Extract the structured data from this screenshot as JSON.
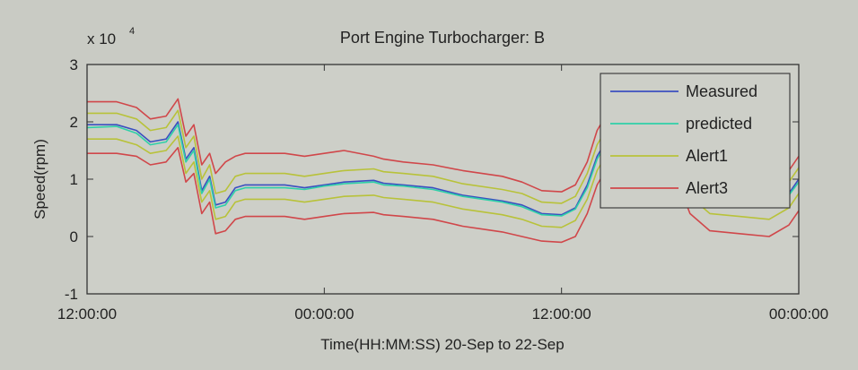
{
  "chart_data": {
    "type": "line",
    "title": "Port Engine Turbocharger: B",
    "xlabel": "Time(HH:MM:SS) 20-Sep to 22-Sep",
    "ylabel": "Speed(rpm)",
    "y_multiplier": "x 10",
    "y_multiplier_exp": "4",
    "xlim": [
      0,
      36
    ],
    "ylim": [
      -1,
      3
    ],
    "x_ticks": [
      0,
      12,
      24,
      36
    ],
    "x_tick_labels": [
      "12:00:00",
      "00:00:00",
      "12:00:00",
      "00:00:00"
    ],
    "y_ticks": [
      -1,
      0,
      1,
      2,
      3
    ],
    "y_tick_labels": [
      "-1",
      "0",
      "1",
      "2",
      "3"
    ],
    "grid": false,
    "legend_position": "top-right",
    "series": [
      {
        "name": "Measured",
        "color": "#3b4fc0",
        "points": [
          [
            0,
            1.95
          ],
          [
            1.5,
            1.95
          ],
          [
            2.5,
            1.85
          ],
          [
            3.2,
            1.65
          ],
          [
            4.0,
            1.7
          ],
          [
            4.6,
            2.0
          ],
          [
            5.0,
            1.35
          ],
          [
            5.4,
            1.55
          ],
          [
            5.8,
            0.8
          ],
          [
            6.2,
            1.05
          ],
          [
            6.5,
            0.55
          ],
          [
            7.0,
            0.6
          ],
          [
            7.5,
            0.85
          ],
          [
            8,
            0.9
          ],
          [
            10,
            0.9
          ],
          [
            11,
            0.85
          ],
          [
            12,
            0.9
          ],
          [
            13,
            0.95
          ],
          [
            14.5,
            0.98
          ],
          [
            15,
            0.93
          ],
          [
            16,
            0.9
          ],
          [
            17.5,
            0.85
          ],
          [
            19,
            0.72
          ],
          [
            21,
            0.62
          ],
          [
            22,
            0.55
          ],
          [
            23,
            0.4
          ],
          [
            24,
            0.38
          ],
          [
            24.7,
            0.5
          ],
          [
            25.3,
            0.9
          ],
          [
            25.8,
            1.4
          ],
          [
            26.4,
            1.75
          ],
          [
            27,
            1.85
          ],
          [
            28,
            1.85
          ],
          [
            29,
            1.85
          ],
          [
            29.7,
            1.8
          ],
          [
            30,
            1.35
          ],
          [
            30.5,
            0.95
          ],
          [
            31.5,
            0.65
          ],
          [
            33,
            0.6
          ],
          [
            34.5,
            0.55
          ],
          [
            35.5,
            0.75
          ],
          [
            36,
            1.0
          ]
        ]
      },
      {
        "name": "predicted",
        "color": "#2fd0a8",
        "points": [
          [
            0,
            1.9
          ],
          [
            1.5,
            1.92
          ],
          [
            2.5,
            1.8
          ],
          [
            3.2,
            1.6
          ],
          [
            4.0,
            1.65
          ],
          [
            4.6,
            1.95
          ],
          [
            5.0,
            1.3
          ],
          [
            5.4,
            1.5
          ],
          [
            5.8,
            0.75
          ],
          [
            6.2,
            1.0
          ],
          [
            6.5,
            0.5
          ],
          [
            7.0,
            0.55
          ],
          [
            7.5,
            0.8
          ],
          [
            8,
            0.85
          ],
          [
            10,
            0.85
          ],
          [
            11,
            0.82
          ],
          [
            12,
            0.88
          ],
          [
            13,
            0.92
          ],
          [
            14.5,
            0.95
          ],
          [
            15,
            0.9
          ],
          [
            16,
            0.88
          ],
          [
            17.5,
            0.82
          ],
          [
            19,
            0.7
          ],
          [
            21,
            0.6
          ],
          [
            22,
            0.52
          ],
          [
            23,
            0.38
          ],
          [
            24,
            0.36
          ],
          [
            24.7,
            0.48
          ],
          [
            25.3,
            0.85
          ],
          [
            25.8,
            1.35
          ],
          [
            26.4,
            1.7
          ],
          [
            27,
            1.8
          ],
          [
            28,
            1.82
          ],
          [
            29,
            1.82
          ],
          [
            29.7,
            1.76
          ],
          [
            30,
            1.3
          ],
          [
            30.5,
            0.9
          ],
          [
            31.5,
            0.62
          ],
          [
            33,
            0.58
          ],
          [
            34.5,
            0.52
          ],
          [
            35.5,
            0.72
          ],
          [
            36,
            0.95
          ]
        ]
      },
      {
        "name": "Alert1",
        "color": "#b8c23a",
        "points": [
          [
            0,
            2.15
          ],
          [
            1.5,
            2.15
          ],
          [
            2.5,
            2.05
          ],
          [
            3.2,
            1.85
          ],
          [
            4.0,
            1.9
          ],
          [
            4.6,
            2.2
          ],
          [
            5.0,
            1.55
          ],
          [
            5.4,
            1.75
          ],
          [
            5.8,
            1.0
          ],
          [
            6.2,
            1.25
          ],
          [
            6.5,
            0.75
          ],
          [
            7.0,
            0.8
          ],
          [
            7.5,
            1.05
          ],
          [
            8,
            1.1
          ],
          [
            10,
            1.1
          ],
          [
            11,
            1.05
          ],
          [
            12,
            1.1
          ],
          [
            13,
            1.15
          ],
          [
            14.5,
            1.18
          ],
          [
            15,
            1.13
          ],
          [
            16,
            1.1
          ],
          [
            17.5,
            1.05
          ],
          [
            19,
            0.92
          ],
          [
            21,
            0.82
          ],
          [
            22,
            0.75
          ],
          [
            23,
            0.6
          ],
          [
            24,
            0.58
          ],
          [
            24.7,
            0.7
          ],
          [
            25.3,
            1.1
          ],
          [
            25.8,
            1.6
          ],
          [
            26.4,
            1.95
          ],
          [
            27,
            2.05
          ],
          [
            28,
            2.05
          ],
          [
            29,
            2.05
          ],
          [
            29.7,
            2.0
          ],
          [
            30,
            1.55
          ],
          [
            30.5,
            1.15
          ],
          [
            31.5,
            0.85
          ],
          [
            33,
            0.8
          ],
          [
            34.5,
            0.75
          ],
          [
            35.5,
            0.95
          ],
          [
            36,
            1.2
          ]
        ]
      },
      {
        "name": "Alert3",
        "color": "#d0474a",
        "points": [
          [
            0,
            2.35
          ],
          [
            1.5,
            2.35
          ],
          [
            2.5,
            2.25
          ],
          [
            3.2,
            2.05
          ],
          [
            4.0,
            2.1
          ],
          [
            4.6,
            2.4
          ],
          [
            5.0,
            1.75
          ],
          [
            5.4,
            1.95
          ],
          [
            5.8,
            1.25
          ],
          [
            6.2,
            1.45
          ],
          [
            6.5,
            1.1
          ],
          [
            7.0,
            1.3
          ],
          [
            7.5,
            1.4
          ],
          [
            8,
            1.45
          ],
          [
            10,
            1.45
          ],
          [
            11,
            1.4
          ],
          [
            12,
            1.45
          ],
          [
            13,
            1.5
          ],
          [
            14.5,
            1.4
          ],
          [
            15,
            1.35
          ],
          [
            16,
            1.3
          ],
          [
            17.5,
            1.25
          ],
          [
            19,
            1.15
          ],
          [
            21,
            1.05
          ],
          [
            22,
            0.95
          ],
          [
            23,
            0.8
          ],
          [
            24,
            0.78
          ],
          [
            24.7,
            0.9
          ],
          [
            25.3,
            1.3
          ],
          [
            25.8,
            1.85
          ],
          [
            26.4,
            2.2
          ],
          [
            27,
            2.3
          ],
          [
            28,
            2.3
          ],
          [
            29,
            2.3
          ],
          [
            29.7,
            2.25
          ],
          [
            30,
            1.8
          ],
          [
            30.5,
            1.35
          ],
          [
            31.5,
            1.05
          ],
          [
            33,
            1.0
          ],
          [
            34.5,
            0.95
          ],
          [
            35.5,
            1.15
          ],
          [
            36,
            1.4
          ]
        ]
      },
      {
        "name": "",
        "color": "#d0474a",
        "points": [
          [
            0,
            1.45
          ],
          [
            1.5,
            1.45
          ],
          [
            2.5,
            1.4
          ],
          [
            3.2,
            1.25
          ],
          [
            4.0,
            1.3
          ],
          [
            4.6,
            1.55
          ],
          [
            5.0,
            0.95
          ],
          [
            5.4,
            1.1
          ],
          [
            5.8,
            0.4
          ],
          [
            6.2,
            0.6
          ],
          [
            6.5,
            0.05
          ],
          [
            7.0,
            0.1
          ],
          [
            7.5,
            0.3
          ],
          [
            8,
            0.35
          ],
          [
            10,
            0.35
          ],
          [
            11,
            0.3
          ],
          [
            12,
            0.35
          ],
          [
            13,
            0.4
          ],
          [
            14.5,
            0.42
          ],
          [
            15,
            0.38
          ],
          [
            16,
            0.35
          ],
          [
            17.5,
            0.3
          ],
          [
            19,
            0.18
          ],
          [
            21,
            0.08
          ],
          [
            22,
            0.0
          ],
          [
            23,
            -0.08
          ],
          [
            24,
            -0.1
          ],
          [
            24.7,
            0.0
          ],
          [
            25.3,
            0.4
          ],
          [
            25.8,
            0.9
          ],
          [
            26.4,
            1.25
          ],
          [
            27,
            1.35
          ],
          [
            28,
            1.35
          ],
          [
            29,
            1.35
          ],
          [
            29.7,
            1.3
          ],
          [
            30,
            0.85
          ],
          [
            30.5,
            0.4
          ],
          [
            31.5,
            0.1
          ],
          [
            33,
            0.05
          ],
          [
            34.5,
            0.0
          ],
          [
            35.5,
            0.2
          ],
          [
            36,
            0.45
          ]
        ]
      },
      {
        "name": "",
        "color": "#b8c23a",
        "points": [
          [
            0,
            1.7
          ],
          [
            1.5,
            1.7
          ],
          [
            2.5,
            1.6
          ],
          [
            3.2,
            1.45
          ],
          [
            4.0,
            1.5
          ],
          [
            4.6,
            1.75
          ],
          [
            5.0,
            1.1
          ],
          [
            5.4,
            1.3
          ],
          [
            5.8,
            0.6
          ],
          [
            6.2,
            0.8
          ],
          [
            6.5,
            0.3
          ],
          [
            7.0,
            0.35
          ],
          [
            7.5,
            0.6
          ],
          [
            8,
            0.65
          ],
          [
            10,
            0.65
          ],
          [
            11,
            0.6
          ],
          [
            12,
            0.65
          ],
          [
            13,
            0.7
          ],
          [
            14.5,
            0.72
          ],
          [
            15,
            0.68
          ],
          [
            16,
            0.65
          ],
          [
            17.5,
            0.6
          ],
          [
            19,
            0.48
          ],
          [
            21,
            0.38
          ],
          [
            22,
            0.3
          ],
          [
            23,
            0.18
          ],
          [
            24,
            0.16
          ],
          [
            24.7,
            0.28
          ],
          [
            25.3,
            0.65
          ],
          [
            25.8,
            1.15
          ],
          [
            26.4,
            1.5
          ],
          [
            27,
            1.6
          ],
          [
            28,
            1.6
          ],
          [
            29,
            1.6
          ],
          [
            29.7,
            1.55
          ],
          [
            30,
            1.1
          ],
          [
            30.5,
            0.7
          ],
          [
            31.5,
            0.4
          ],
          [
            33,
            0.35
          ],
          [
            34.5,
            0.3
          ],
          [
            35.5,
            0.5
          ],
          [
            36,
            0.75
          ]
        ]
      }
    ]
  }
}
